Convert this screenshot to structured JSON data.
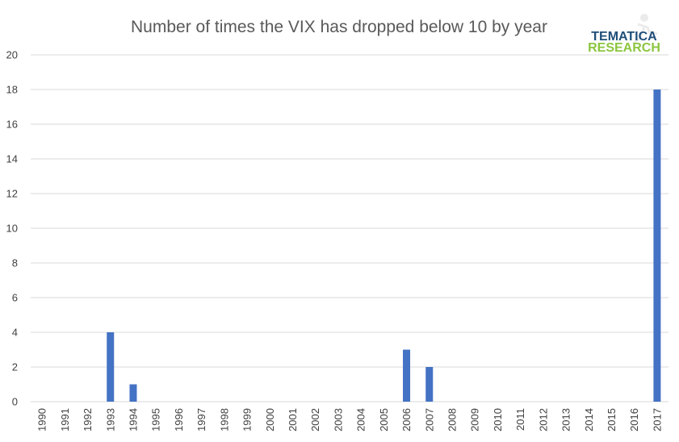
{
  "chart_data": {
    "type": "bar",
    "title": "Number of times the VIX has dropped below 10 by year",
    "xlabel": "",
    "ylabel": "",
    "categories": [
      "1990",
      "1991",
      "1992",
      "1993",
      "1994",
      "1995",
      "1996",
      "1997",
      "1998",
      "1999",
      "2000",
      "2001",
      "2002",
      "2003",
      "2004",
      "2005",
      "2006",
      "2007",
      "2008",
      "2009",
      "2010",
      "2011",
      "2012",
      "2013",
      "2014",
      "2015",
      "2016",
      "2017"
    ],
    "values": [
      0,
      0,
      0,
      4,
      1,
      0,
      0,
      0,
      0,
      0,
      0,
      0,
      0,
      0,
      0,
      0,
      3,
      2,
      0,
      0,
      0,
      0,
      0,
      0,
      0,
      0,
      0,
      18
    ],
    "ylim": [
      0,
      20
    ],
    "yticks": [
      0,
      2,
      4,
      6,
      8,
      10,
      12,
      14,
      16,
      18,
      20
    ],
    "grid": true,
    "legend": "none",
    "bar_color": "#4472c4",
    "grid_color": "#d9d9d9"
  },
  "logo": {
    "line1": "TEMATICA",
    "line2": "RESEARCH",
    "icon": "runner-silhouette-icon"
  }
}
